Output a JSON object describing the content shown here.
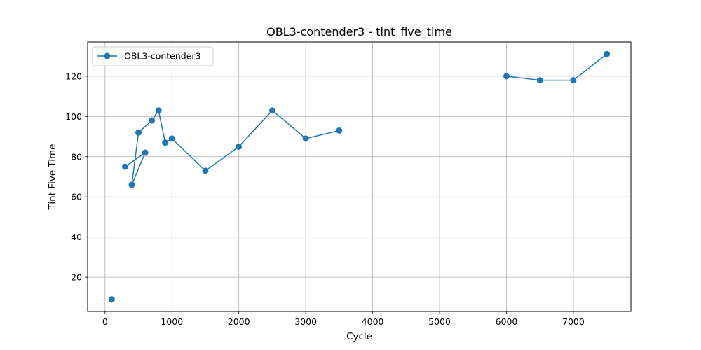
{
  "chart_data": {
    "type": "line",
    "title": "OBL3-contender3 - tint_five_time",
    "xlabel": "Cycle",
    "ylabel": "Tint Five Time",
    "xlim": [
      -260,
      7860
    ],
    "ylim": [
      3,
      137
    ],
    "xticks": [
      0,
      1000,
      2000,
      3000,
      4000,
      5000,
      6000,
      7000
    ],
    "yticks": [
      20,
      40,
      60,
      80,
      100,
      120
    ],
    "grid": true,
    "legend_position": "top-left",
    "color": "#1f77b4",
    "series": [
      {
        "name": "OBL3-contender3",
        "segments": [
          [
            [
              100,
              9
            ]
          ],
          [
            [
              300,
              75
            ],
            [
              600,
              82
            ],
            [
              400,
              66
            ],
            [
              500,
              92
            ],
            [
              700,
              98
            ],
            [
              800,
              103
            ],
            [
              900,
              87
            ],
            [
              1000,
              89
            ],
            [
              1500,
              73
            ],
            [
              2000,
              85
            ],
            [
              2500,
              103
            ],
            [
              3000,
              89
            ],
            [
              3500,
              93
            ]
          ],
          [
            [
              6000,
              120
            ],
            [
              6500,
              118
            ],
            [
              7000,
              118
            ],
            [
              7500,
              131
            ]
          ]
        ]
      }
    ]
  }
}
